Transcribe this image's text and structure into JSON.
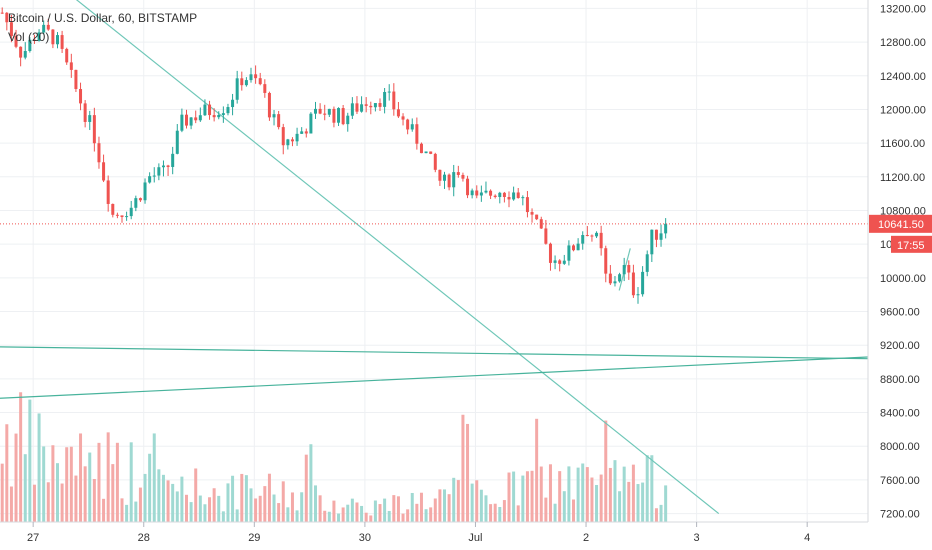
{
  "legend": {
    "symbol": "Bitcoin / U.S. Dollar, 60, BITSTAMP",
    "volume": "Vol (20)"
  },
  "price_axis": {
    "last_price": "10641.50",
    "countdown": "17:55",
    "last_price_color": "#ef5350"
  },
  "chart_data": {
    "type": "candlestick",
    "price_ticks": [
      "13200.00",
      "12800.00",
      "12400.00",
      "12000.00",
      "11600.00",
      "11200.00",
      "10800.00",
      "10400.00",
      "10000.00",
      "9600.00",
      "9200.00",
      "8800.00",
      "8400.00",
      "8000.00",
      "7600.00",
      "7200.00"
    ],
    "time_ticks": [
      {
        "label": "27",
        "day": 27
      },
      {
        "label": "28",
        "day": 28
      },
      {
        "label": "29",
        "day": 29
      },
      {
        "label": "30",
        "day": 30
      },
      {
        "label": "Jul",
        "day": 31
      },
      {
        "label": "2",
        "day": 32
      },
      {
        "label": "3",
        "day": 33
      },
      {
        "label": "4",
        "day": 34
      }
    ],
    "ylim": [
      7100,
      13300
    ],
    "xlim": [
      26.7,
      34.55
    ],
    "up_color": "#26a69a",
    "down_color": "#ef5350",
    "last_price": 10641.5,
    "anchors": [
      {
        "t": 26.72,
        "p": 13150
      },
      {
        "t": 26.9,
        "p": 12650
      },
      {
        "t": 27.05,
        "p": 12950
      },
      {
        "t": 27.2,
        "p": 12850
      },
      {
        "t": 27.35,
        "p": 12350
      },
      {
        "t": 27.55,
        "p": 11700
      },
      {
        "t": 27.72,
        "p": 10750
      },
      {
        "t": 27.9,
        "p": 10850
      },
      {
        "t": 28.05,
        "p": 11200
      },
      {
        "t": 28.2,
        "p": 11250
      },
      {
        "t": 28.35,
        "p": 11850
      },
      {
        "t": 28.5,
        "p": 11950
      },
      {
        "t": 28.75,
        "p": 12050
      },
      {
        "t": 28.9,
        "p": 12400
      },
      {
        "t": 29.05,
        "p": 12300
      },
      {
        "t": 29.25,
        "p": 11600
      },
      {
        "t": 29.4,
        "p": 11700
      },
      {
        "t": 29.6,
        "p": 12000
      },
      {
        "t": 29.8,
        "p": 11900
      },
      {
        "t": 30.0,
        "p": 12100
      },
      {
        "t": 30.2,
        "p": 12150
      },
      {
        "t": 30.35,
        "p": 11850
      },
      {
        "t": 30.5,
        "p": 11600
      },
      {
        "t": 30.7,
        "p": 11100
      },
      {
        "t": 30.85,
        "p": 11300
      },
      {
        "t": 31.0,
        "p": 10900
      },
      {
        "t": 31.2,
        "p": 11050
      },
      {
        "t": 31.4,
        "p": 11000
      },
      {
        "t": 31.55,
        "p": 10600
      },
      {
        "t": 31.7,
        "p": 10200
      },
      {
        "t": 31.85,
        "p": 10300
      },
      {
        "t": 32.0,
        "p": 10600
      },
      {
        "t": 32.12,
        "p": 10400
      },
      {
        "t": 32.2,
        "p": 9850
      },
      {
        "t": 32.33,
        "p": 10150
      },
      {
        "t": 32.45,
        "p": 9800
      },
      {
        "t": 32.6,
        "p": 10500
      },
      {
        "t": 32.75,
        "p": 10641.5
      }
    ],
    "volume_anchors": [
      {
        "t": 26.7,
        "v": 70
      },
      {
        "t": 27.0,
        "v": 55
      },
      {
        "t": 27.3,
        "v": 42
      },
      {
        "t": 27.6,
        "v": 50
      },
      {
        "t": 27.9,
        "v": 38
      },
      {
        "t": 28.2,
        "v": 30
      },
      {
        "t": 28.5,
        "v": 26
      },
      {
        "t": 28.8,
        "v": 22
      },
      {
        "t": 29.1,
        "v": 24
      },
      {
        "t": 29.4,
        "v": 20
      },
      {
        "t": 29.7,
        "v": 16
      },
      {
        "t": 30.0,
        "v": 12
      },
      {
        "t": 30.3,
        "v": 14
      },
      {
        "t": 30.6,
        "v": 18
      },
      {
        "t": 30.9,
        "v": 24
      },
      {
        "t": 31.2,
        "v": 20
      },
      {
        "t": 31.5,
        "v": 30
      },
      {
        "t": 31.8,
        "v": 32
      },
      {
        "t": 32.1,
        "v": 28
      },
      {
        "t": 32.4,
        "v": 35
      },
      {
        "t": 32.75,
        "v": 28
      }
    ],
    "trendlines": [
      {
        "t1": 27.3,
        "p1": 13400,
        "t2": 33.2,
        "p2": 7200,
        "color": "#6fc7b8"
      },
      {
        "t1": 26.7,
        "p1": 9180,
        "t2": 34.55,
        "p2": 9040,
        "color": "#48b39c"
      },
      {
        "t1": 26.7,
        "p1": 8570,
        "t2": 34.55,
        "p2": 9060,
        "color": "#48b39c"
      },
      {
        "t1": 32.3,
        "p1": 9850,
        "t2": 32.4,
        "p2": 10350,
        "color": "#6fc7b8"
      }
    ]
  }
}
